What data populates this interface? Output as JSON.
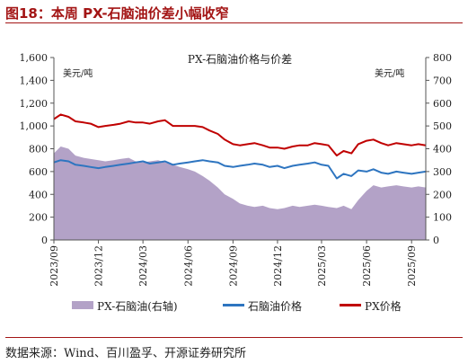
{
  "figure_title": "图18：本周 PX-石脑油价差小幅收窄",
  "source_note": "数据来源：Wind、百川盈孚、开源证券研究所",
  "chart_data": {
    "type": "line",
    "title": "PX-石脑油价格与价差",
    "ylabel_left_unit": "美元/吨",
    "ylabel_right_unit": "美元/吨",
    "ylim_left": [
      0,
      1600
    ],
    "yticks_left": [
      "0",
      "200",
      "400",
      "600",
      "800",
      "1,000",
      "1,200",
      "1,400",
      "1,600"
    ],
    "ylim_right": [
      0,
      800
    ],
    "yticks_right": [
      "0",
      "100",
      "200",
      "300",
      "400",
      "500",
      "600",
      "700",
      "800"
    ],
    "xlim": [
      "2023-09-01",
      "2025-09-30"
    ],
    "x_tick_labels": [
      "2023/09",
      "2023/12",
      "2024/03",
      "2024/06",
      "2024/09",
      "2024/12",
      "2025/03",
      "2025/06",
      "2025/09"
    ],
    "x_tick_dates": [
      "2023-09-01",
      "2023-12-01",
      "2024-03-01",
      "2024-06-01",
      "2024-09-01",
      "2024-12-01",
      "2025-03-01",
      "2025-06-01",
      "2025-09-01"
    ],
    "grid": false,
    "legend_position": "bottom",
    "series": [
      {
        "name": "PX-石脑油(右轴)",
        "type": "area",
        "axis": "right",
        "color": "#b3a2c7",
        "x": [
          "2023-09-01",
          "2023-09-15",
          "2023-10-01",
          "2023-10-15",
          "2023-11-01",
          "2023-11-15",
          "2023-12-01",
          "2023-12-15",
          "2024-01-01",
          "2024-01-15",
          "2024-02-01",
          "2024-02-15",
          "2024-03-01",
          "2024-03-15",
          "2024-04-01",
          "2024-04-15",
          "2024-05-01",
          "2024-05-15",
          "2024-06-01",
          "2024-06-15",
          "2024-07-01",
          "2024-07-15",
          "2024-08-01",
          "2024-08-15",
          "2024-09-01",
          "2024-09-15",
          "2024-10-01",
          "2024-10-15",
          "2024-11-01",
          "2024-11-15",
          "2024-12-01",
          "2024-12-15",
          "2025-01-01",
          "2025-01-15",
          "2025-02-01",
          "2025-02-15",
          "2025-03-01",
          "2025-03-15",
          "2025-04-01",
          "2025-04-15",
          "2025-05-01",
          "2025-05-15",
          "2025-06-01",
          "2025-06-15",
          "2025-07-01",
          "2025-07-15",
          "2025-08-01",
          "2025-08-15",
          "2025-09-01",
          "2025-09-15",
          "2025-09-30"
        ],
        "values": [
          380,
          410,
          400,
          370,
          360,
          355,
          350,
          345,
          350,
          355,
          360,
          345,
          340,
          345,
          350,
          340,
          330,
          320,
          310,
          300,
          280,
          260,
          230,
          200,
          180,
          160,
          150,
          145,
          150,
          140,
          135,
          140,
          150,
          145,
          150,
          155,
          150,
          145,
          140,
          150,
          135,
          175,
          215,
          240,
          230,
          235,
          240,
          235,
          230,
          235,
          230
        ]
      },
      {
        "name": "石脑油价格",
        "type": "line",
        "axis": "left",
        "color": "#2e75c0",
        "x": [
          "2023-09-01",
          "2023-09-15",
          "2023-10-01",
          "2023-10-15",
          "2023-11-01",
          "2023-11-15",
          "2023-12-01",
          "2023-12-15",
          "2024-01-01",
          "2024-01-15",
          "2024-02-01",
          "2024-02-15",
          "2024-03-01",
          "2024-03-15",
          "2024-04-01",
          "2024-04-15",
          "2024-05-01",
          "2024-05-15",
          "2024-06-01",
          "2024-06-15",
          "2024-07-01",
          "2024-07-15",
          "2024-08-01",
          "2024-08-15",
          "2024-09-01",
          "2024-09-15",
          "2024-10-01",
          "2024-10-15",
          "2024-11-01",
          "2024-11-15",
          "2024-12-01",
          "2024-12-15",
          "2025-01-01",
          "2025-01-15",
          "2025-02-01",
          "2025-02-15",
          "2025-03-01",
          "2025-03-15",
          "2025-04-01",
          "2025-04-15",
          "2025-05-01",
          "2025-05-15",
          "2025-06-01",
          "2025-06-15",
          "2025-07-01",
          "2025-07-15",
          "2025-08-01",
          "2025-08-15",
          "2025-09-01",
          "2025-09-15",
          "2025-09-30"
        ],
        "values": [
          680,
          700,
          690,
          660,
          650,
          640,
          630,
          640,
          650,
          660,
          670,
          680,
          690,
          670,
          680,
          690,
          660,
          670,
          680,
          690,
          700,
          690,
          680,
          650,
          640,
          650,
          660,
          670,
          660,
          640,
          650,
          630,
          650,
          660,
          670,
          680,
          660,
          650,
          540,
          580,
          560,
          610,
          600,
          620,
          590,
          580,
          600,
          590,
          580,
          590,
          600
        ]
      },
      {
        "name": "PX价格",
        "type": "line",
        "axis": "left",
        "color": "#c00000",
        "x": [
          "2023-09-01",
          "2023-09-15",
          "2023-10-01",
          "2023-10-15",
          "2023-11-01",
          "2023-11-15",
          "2023-12-01",
          "2023-12-15",
          "2024-01-01",
          "2024-01-15",
          "2024-02-01",
          "2024-02-15",
          "2024-03-01",
          "2024-03-15",
          "2024-04-01",
          "2024-04-15",
          "2024-05-01",
          "2024-05-15",
          "2024-06-01",
          "2024-06-15",
          "2024-07-01",
          "2024-07-15",
          "2024-08-01",
          "2024-08-15",
          "2024-09-01",
          "2024-09-15",
          "2024-10-01",
          "2024-10-15",
          "2024-11-01",
          "2024-11-15",
          "2024-12-01",
          "2024-12-15",
          "2025-01-01",
          "2025-01-15",
          "2025-02-01",
          "2025-02-15",
          "2025-03-01",
          "2025-03-15",
          "2025-04-01",
          "2025-04-15",
          "2025-05-01",
          "2025-05-15",
          "2025-06-01",
          "2025-06-15",
          "2025-07-01",
          "2025-07-15",
          "2025-08-01",
          "2025-08-15",
          "2025-09-01",
          "2025-09-15",
          "2025-09-30"
        ],
        "values": [
          1060,
          1100,
          1080,
          1040,
          1030,
          1020,
          990,
          1000,
          1010,
          1020,
          1040,
          1030,
          1030,
          1020,
          1040,
          1050,
          1000,
          1000,
          1000,
          1000,
          990,
          960,
          930,
          880,
          840,
          830,
          840,
          850,
          830,
          810,
          810,
          800,
          820,
          830,
          830,
          850,
          840,
          830,
          740,
          780,
          760,
          840,
          870,
          880,
          850,
          830,
          850,
          840,
          830,
          840,
          830
        ]
      }
    ]
  }
}
